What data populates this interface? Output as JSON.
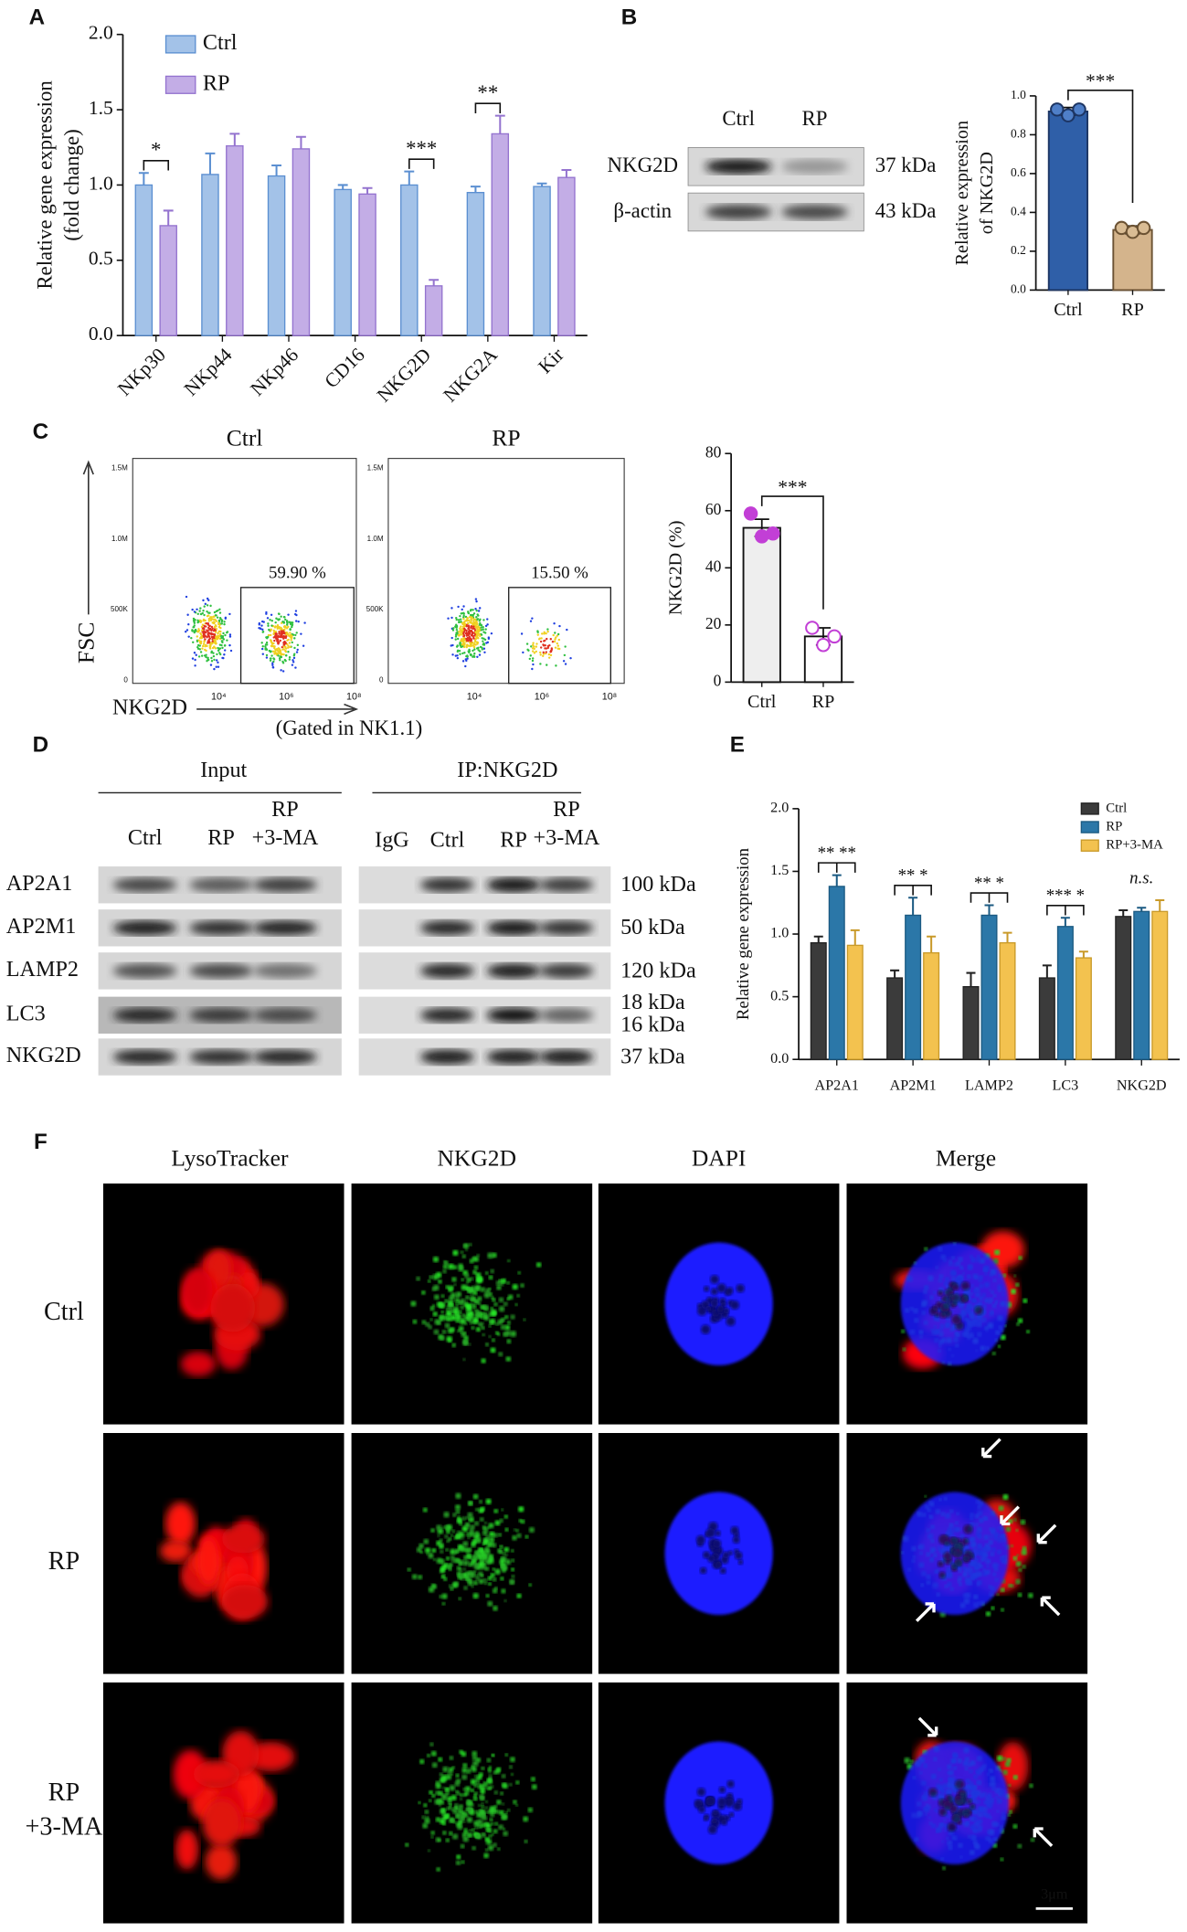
{
  "panel_letters": [
    "A",
    "B",
    "C",
    "D",
    "E",
    "F"
  ],
  "chart_data": [
    {
      "type": "bar",
      "y_label": [
        "Relative gene expression",
        "(fold change)"
      ],
      "categories": [
        "NKp30",
        "NKp44",
        "NKp46",
        "CD16",
        "NKG2D",
        "NKG2A",
        "Kir"
      ],
      "category_label_colors": [
        "#e8231f",
        "#111111",
        "#111111",
        "#111111",
        "#e8231f",
        "#e8231f",
        "#111111"
      ],
      "series": [
        {
          "name": "Ctrl",
          "color": "#a3c2e8",
          "edge_color": "#5b8fd1",
          "values": [
            1.0,
            1.07,
            1.06,
            0.97,
            1.0,
            0.95,
            0.99
          ],
          "errors": [
            0.08,
            0.14,
            0.07,
            0.03,
            0.09,
            0.04,
            0.02
          ]
        },
        {
          "name": "RP",
          "color": "#c3ade6",
          "edge_color": "#9473cf",
          "values": [
            0.73,
            1.26,
            1.24,
            0.94,
            0.33,
            1.34,
            1.05
          ],
          "errors": [
            0.1,
            0.08,
            0.08,
            0.04,
            0.04,
            0.12,
            0.05
          ]
        }
      ],
      "significance": [
        "*",
        null,
        null,
        null,
        "***",
        "**",
        null
      ],
      "ylim": [
        0,
        2.0
      ],
      "yticks": [
        {
          "value": 0,
          "label": "0.0"
        },
        {
          "value": 0.5,
          "label": "0.5"
        },
        {
          "value": 1.0,
          "label": "1.0"
        },
        {
          "value": 1.5,
          "label": "1.5"
        },
        {
          "value": 2.0,
          "label": "2.0"
        }
      ],
      "legend": "top-left"
    },
    {
      "type": "bar",
      "y_label": [
        "Relative expression",
        "of NKG2D"
      ],
      "categories": [
        "Ctrl",
        "RP"
      ],
      "values": [
        0.92,
        0.31
      ],
      "errors": [
        0.02,
        0.02
      ],
      "points": [
        [
          0.93,
          0.9,
          0.93
        ],
        [
          0.32,
          0.3,
          0.32
        ]
      ],
      "colors": [
        "#2f5fa8",
        "#d4b48c"
      ],
      "edge_colors": [
        "#1d3563",
        "#6b5233"
      ],
      "point_fill": [
        "#4f7fc8",
        "#d9bc94"
      ],
      "point_stroke": [
        "#1d3563",
        "#6b5233"
      ],
      "significance": "***",
      "ylim": [
        0,
        1.0
      ],
      "yticks": [
        {
          "value": 0,
          "label": "0.0"
        },
        {
          "value": 0.2,
          "label": "0.2"
        },
        {
          "value": 0.4,
          "label": "0.4"
        },
        {
          "value": 0.6,
          "label": "0.6"
        },
        {
          "value": 0.8,
          "label": "0.8"
        },
        {
          "value": 1.0,
          "label": "1.0"
        }
      ]
    },
    {
      "type": "bar",
      "y_label": [
        "NKG2D (%)"
      ],
      "categories": [
        "Ctrl",
        "RP"
      ],
      "values": [
        54,
        16
      ],
      "errors": [
        3,
        3
      ],
      "points": [
        [
          59,
          51,
          52
        ],
        [
          19,
          13,
          16
        ]
      ],
      "colors": [
        "#eeeeee",
        "#ffffff"
      ],
      "edge_colors": [
        "#111111",
        "#111111"
      ],
      "point_fill": [
        "#c23fd6",
        "#ffffff"
      ],
      "point_stroke": [
        "#c23fd6",
        "#c23fd6"
      ],
      "significance": "***",
      "ylim": [
        0,
        80
      ],
      "yticks": [
        0,
        20,
        40,
        60,
        80
      ]
    },
    {
      "type": "bar",
      "y_label": [
        "Relative gene expression"
      ],
      "categories": [
        "AP2A1",
        "AP2M1",
        "LAMP2",
        "LC3",
        "NKG2D"
      ],
      "series": [
        {
          "name": "Ctrl",
          "color": "#3b3b3b",
          "edge_color": "#222222",
          "values": [
            0.93,
            0.65,
            0.58,
            0.65,
            1.14
          ],
          "errors": [
            0.05,
            0.06,
            0.11,
            0.1,
            0.05
          ]
        },
        {
          "name": "RP",
          "color": "#2b77a8",
          "edge_color": "#1b5a82",
          "values": [
            1.38,
            1.15,
            1.15,
            1.06,
            1.18
          ],
          "errors": [
            0.09,
            0.14,
            0.08,
            0.07,
            0.03
          ]
        },
        {
          "name": "RP+3-MA",
          "color": "#f3c24f",
          "edge_color": "#c99a2a",
          "values": [
            0.91,
            0.85,
            0.93,
            0.81,
            1.18
          ],
          "errors": [
            0.12,
            0.13,
            0.08,
            0.05,
            0.09
          ]
        }
      ],
      "significance": [
        "** **",
        "** *",
        "** *",
        "*** *",
        "n.s."
      ],
      "ylim": [
        0,
        2.0
      ],
      "yticks": [
        {
          "value": 0,
          "label": "0.0"
        },
        {
          "value": 0.5,
          "label": "0.5"
        },
        {
          "value": 1.0,
          "label": "1.0"
        },
        {
          "value": 1.5,
          "label": "1.5"
        },
        {
          "value": 2.0,
          "label": "2.0"
        }
      ],
      "legend": "top-right"
    }
  ],
  "blot_b": {
    "lanes": [
      "Ctrl",
      "RP"
    ],
    "rows": [
      "NKG2D",
      "β-actin"
    ],
    "sizes": [
      "37 kDa",
      "43 kDa"
    ]
  },
  "flow_c": {
    "plots": [
      "Ctrl",
      "RP"
    ],
    "gates": [
      "59.90 %",
      "15.50 %"
    ],
    "y_axis": "FSC",
    "x_axis": "NKG2D",
    "gating": "(Gated in NK1.1)",
    "y_tick_labels": [
      "1.5M",
      "1.0M",
      "500K",
      "0"
    ],
    "x_tick_labels": [
      "10⁴",
      "10⁶",
      "10⁸"
    ]
  },
  "blot_d": {
    "groups": [
      "Input",
      "IP:NKG2D"
    ],
    "input_lanes": [
      [
        "Ctrl"
      ],
      [
        "RP"
      ],
      [
        "RP",
        "+3-MA"
      ]
    ],
    "ip_lanes": [
      [
        "IgG"
      ],
      [
        "Ctrl"
      ],
      [
        "RP"
      ],
      [
        "RP",
        "+3-MA"
      ]
    ],
    "rows": [
      "AP2A1",
      "AP2M1",
      "LAMP2",
      "LC3",
      "NKG2D"
    ],
    "sizes": [
      [
        "100 kDa"
      ],
      [
        "50 kDa"
      ],
      [
        "120 kDa"
      ],
      [
        "18 kDa",
        "16 kDa"
      ],
      [
        "37 kDa"
      ]
    ]
  },
  "microscopy_f": {
    "columns": [
      "LysoTracker",
      "NKG2D",
      "DAPI",
      "Merge"
    ],
    "rows": [
      [
        "Ctrl"
      ],
      [
        "RP"
      ],
      [
        "RP",
        "+3-MA"
      ]
    ],
    "scale_bar": "3μm"
  }
}
